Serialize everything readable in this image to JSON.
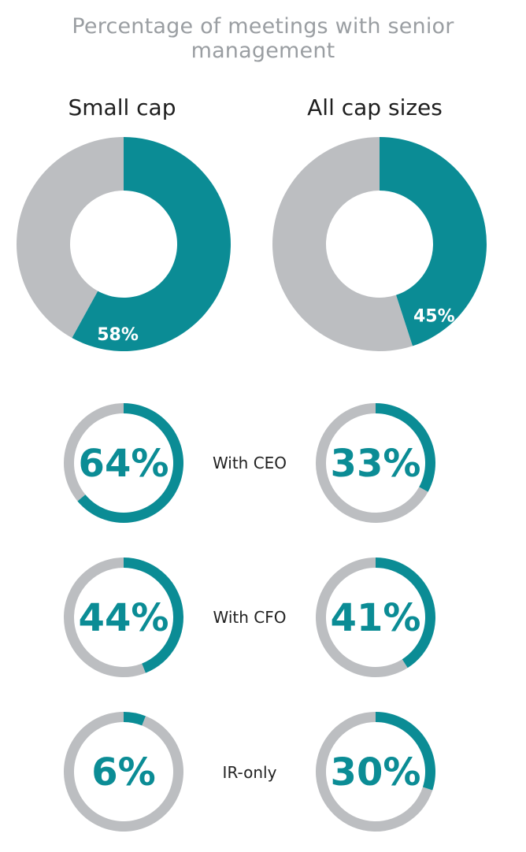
{
  "title": "Percentage of meetings with senior management",
  "colors": {
    "accent": "#0b8c95",
    "rest": "#bcbec1"
  },
  "chart_data": [
    {
      "type": "pie",
      "title": "Small cap",
      "series": [
        {
          "labels": [
            "",
            ""
          ],
          "values": [
            58,
            42
          ]
        }
      ],
      "data_labels": [
        "58%"
      ]
    },
    {
      "type": "pie",
      "title": "All cap sizes",
      "series": [
        {
          "labels": [
            "",
            ""
          ],
          "values": [
            45,
            55
          ]
        }
      ],
      "data_labels": [
        "45%"
      ]
    },
    {
      "type": "table",
      "columns": [
        "Small cap",
        "All cap sizes"
      ],
      "rows": [
        {
          "label": "With CEO",
          "values": [
            64,
            33
          ],
          "data_labels": [
            "64%",
            "33%"
          ]
        },
        {
          "label": "With CFO",
          "values": [
            44,
            41
          ],
          "data_labels": [
            "44%",
            "41%"
          ]
        },
        {
          "label": "IR-only",
          "values": [
            6,
            30
          ],
          "data_labels": [
            "6%",
            "30%"
          ]
        }
      ]
    }
  ]
}
